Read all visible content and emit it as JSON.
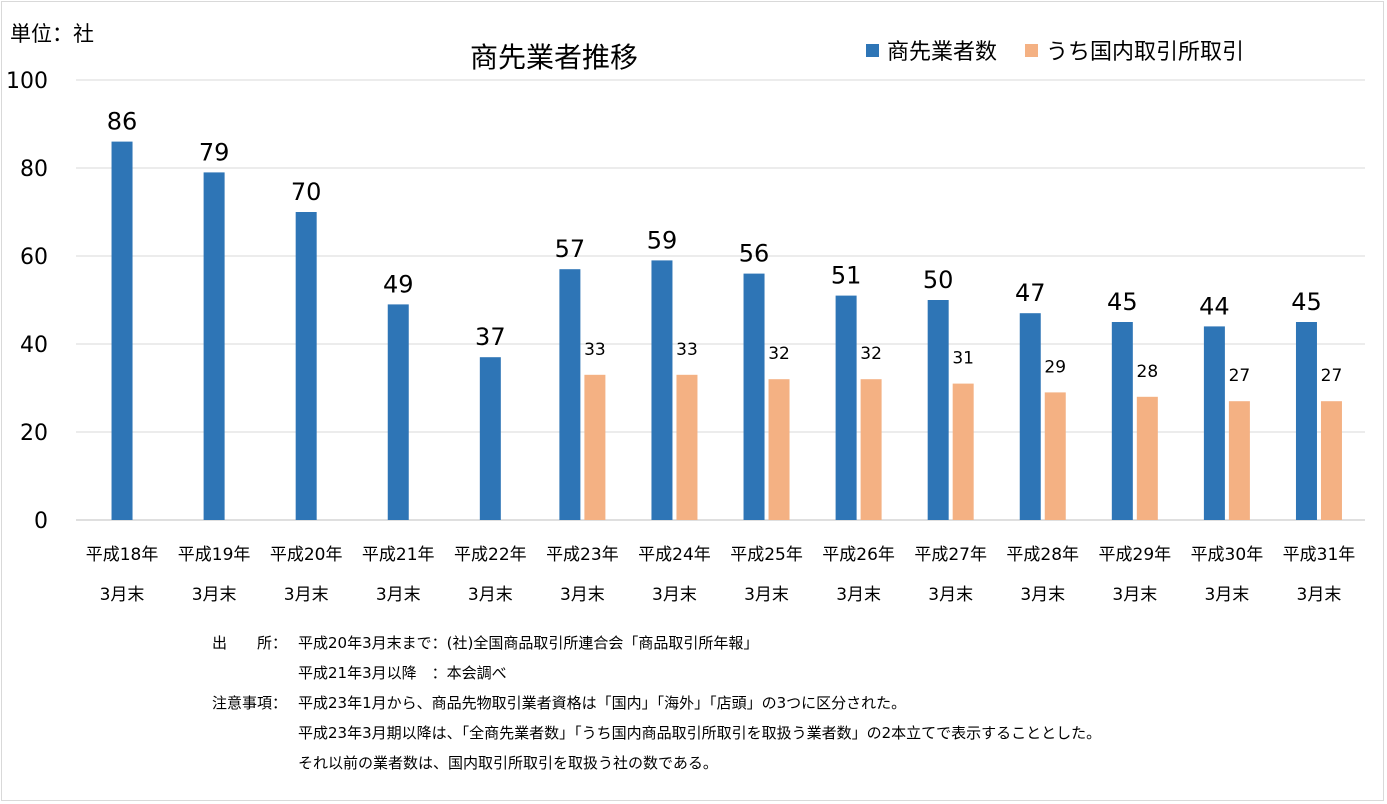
{
  "unit_label": "単位：社",
  "chart_data": {
    "type": "bar",
    "title": "商先業者推移",
    "ylim": [
      0,
      100
    ],
    "yticks": [
      0,
      20,
      40,
      60,
      80,
      100
    ],
    "grid": true,
    "legend_position": "top-right",
    "categories": [
      [
        "平成18年",
        "3月末"
      ],
      [
        "平成19年",
        "3月末"
      ],
      [
        "平成20年",
        "3月末"
      ],
      [
        "平成21年",
        "3月末"
      ],
      [
        "平成22年",
        "3月末"
      ],
      [
        "平成23年",
        "3月末"
      ],
      [
        "平成24年",
        "3月末"
      ],
      [
        "平成25年",
        "3月末"
      ],
      [
        "平成26年",
        "3月末"
      ],
      [
        "平成27年",
        "3月末"
      ],
      [
        "平成28年",
        "3月末"
      ],
      [
        "平成29年",
        "3月末"
      ],
      [
        "平成30年",
        "3月末"
      ],
      [
        "平成31年",
        "3月末"
      ]
    ],
    "series": [
      {
        "name": "商先業者数",
        "color": "#2e75b6",
        "values": [
          86,
          79,
          70,
          49,
          37,
          57,
          59,
          56,
          51,
          50,
          47,
          45,
          44,
          45
        ]
      },
      {
        "name": "うち国内取引所取引",
        "color": "#f4b183",
        "values": [
          null,
          null,
          null,
          null,
          null,
          33,
          33,
          32,
          32,
          31,
          29,
          28,
          27,
          27
        ]
      }
    ]
  },
  "notes": [
    {
      "label": "出　　所：",
      "text": "平成20年3月末まで：(社)全国商品取引所連合会「商品取引所年報」"
    },
    {
      "label": "",
      "text": "平成21年3月以降　：本会調べ"
    },
    {
      "label": "注意事項：",
      "text": "平成23年1月から、商品先物取引業者資格は「国内」「海外」「店頭」の3つに区分された。"
    },
    {
      "label": "",
      "text": "平成23年3月期以降は、「全商先業者数」「うち国内商品取引所取引を取扱う業者数」の2本立てで表示することとした。"
    },
    {
      "label": "",
      "text": "それ以前の業者数は、国内取引所取引を取扱う社の数である。"
    }
  ]
}
